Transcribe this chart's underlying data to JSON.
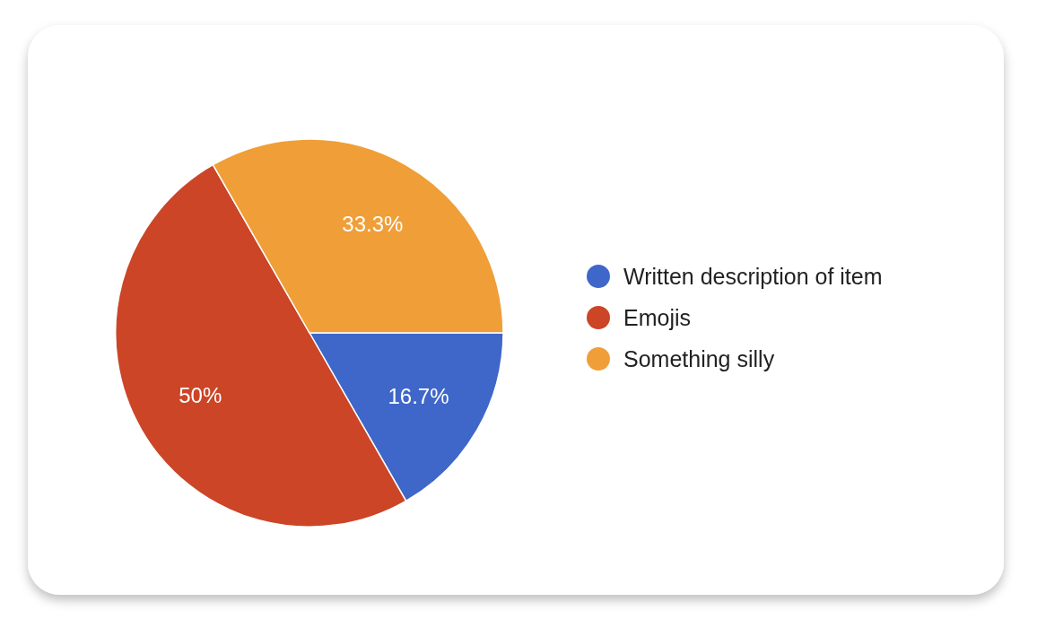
{
  "chart_data": {
    "type": "pie",
    "categories": [
      "Written description of item",
      "Emojis",
      "Something silly"
    ],
    "values": [
      16.7,
      50,
      33.3
    ],
    "colors": [
      "#3f67c9",
      "#cb4526",
      "#f09e37"
    ],
    "value_labels": [
      "16.7%",
      "50%",
      "33.3%"
    ],
    "legend": "right"
  }
}
